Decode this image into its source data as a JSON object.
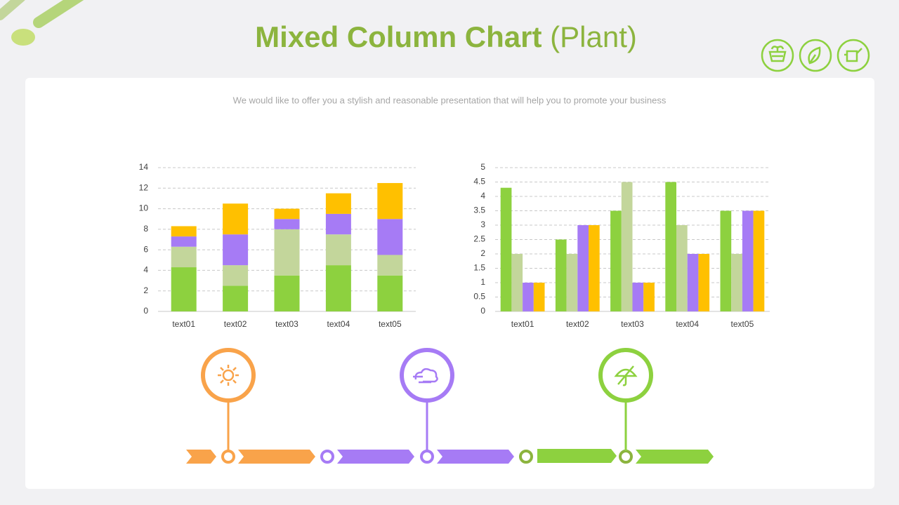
{
  "title": "Mixed Column Chart",
  "title_note": "(Plant)",
  "subtitle": "We would like to offer you a stylish and reasonable presentation that will help you to promote your business",
  "chart_data": [
    {
      "type": "bar",
      "stacked": true,
      "grid": true,
      "categories": [
        "text01",
        "text02",
        "text03",
        "text04",
        "text05"
      ],
      "series": [
        {
          "color": "#8dd13f",
          "values": [
            4.3,
            2.5,
            3.5,
            4.5,
            3.5
          ]
        },
        {
          "color": "#c3d69b",
          "values": [
            2.0,
            2.0,
            4.5,
            3.0,
            2.0
          ]
        },
        {
          "color": "#a67bf5",
          "values": [
            1.0,
            3.0,
            1.0,
            2.0,
            3.5
          ]
        },
        {
          "color": "#ffc000",
          "values": [
            1.0,
            3.0,
            1.0,
            2.0,
            3.5
          ]
        }
      ],
      "ylim": [
        0,
        14
      ],
      "yticks": [
        0,
        2,
        4,
        6,
        8,
        10,
        12,
        14
      ]
    },
    {
      "type": "bar",
      "stacked": false,
      "grid": true,
      "categories": [
        "text01",
        "text02",
        "text03",
        "text04",
        "text05"
      ],
      "series": [
        {
          "color": "#8dd13f",
          "values": [
            4.3,
            2.5,
            3.5,
            4.5,
            3.5
          ]
        },
        {
          "color": "#c3d69b",
          "values": [
            2.0,
            2.0,
            4.5,
            3.0,
            2.0
          ]
        },
        {
          "color": "#a67bf5",
          "values": [
            1.0,
            3.0,
            1.0,
            2.0,
            3.5
          ]
        },
        {
          "color": "#ffc000",
          "values": [
            1.0,
            3.0,
            1.0,
            2.0,
            3.5
          ]
        }
      ],
      "ylim": [
        0,
        5
      ],
      "yticks": [
        0,
        0.5,
        1,
        1.5,
        2,
        2.5,
        3,
        3.5,
        4,
        4.5,
        5
      ]
    }
  ]
}
